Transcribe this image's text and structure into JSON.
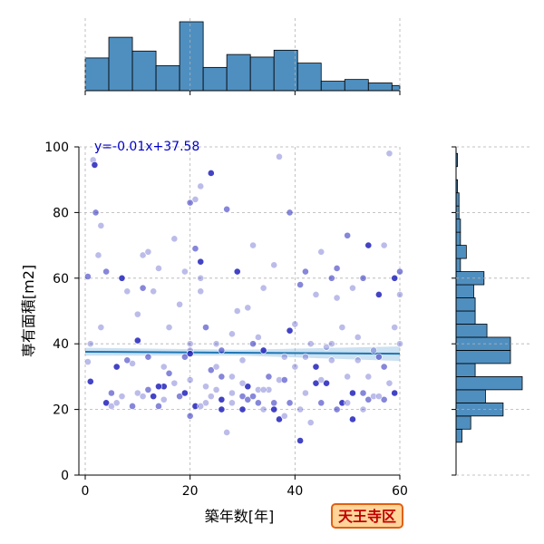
{
  "chart_data": {
    "type": "scatter",
    "xlabel": "築年数[年]",
    "ylabel": "専有面積[m2]",
    "xlim": [
      -1,
      60
    ],
    "ylim": [
      0,
      100
    ],
    "xticks": [
      0,
      20,
      40,
      60
    ],
    "yticks": [
      0,
      20,
      40,
      60,
      80,
      100
    ],
    "grid": true,
    "annotation": "y=-0.01x+37.58",
    "badge": "天王寺区",
    "regression": {
      "slope": -0.01,
      "intercept": 37.58,
      "x_range": [
        0,
        60
      ]
    },
    "marginal_x_hist": {
      "bin_edges": [
        0,
        4.5,
        9,
        13.5,
        18,
        22.5,
        27,
        31.5,
        36,
        40.5,
        45,
        49.5,
        54,
        58.5,
        60
      ],
      "counts": [
        38,
        62,
        46,
        29,
        80,
        27,
        42,
        39,
        47,
        32,
        11,
        13,
        9,
        6
      ]
    },
    "marginal_y_hist": {
      "bin_edges": [
        10,
        14,
        18,
        22,
        26,
        30,
        34,
        38,
        42,
        46,
        50,
        54,
        58,
        62,
        66,
        70,
        74,
        78,
        82,
        86,
        90,
        94,
        98
      ],
      "counts": [
        4,
        10,
        32,
        20,
        45,
        13,
        37,
        37,
        21,
        13,
        13,
        12,
        19,
        3,
        7,
        3,
        3,
        2,
        2,
        1,
        0,
        1,
        0
      ]
    },
    "points": [
      [
        1,
        28.5
      ],
      [
        0.5,
        34.5
      ],
      [
        1,
        40
      ],
      [
        0.5,
        60.5
      ],
      [
        1.5,
        96
      ],
      [
        1.8,
        94.5
      ],
      [
        2,
        80
      ],
      [
        3,
        76
      ],
      [
        2.5,
        67
      ],
      [
        4,
        62
      ],
      [
        4,
        22
      ],
      [
        5,
        21
      ],
      [
        5,
        25
      ],
      [
        6,
        22
      ],
      [
        7,
        24
      ],
      [
        7,
        60
      ],
      [
        8,
        56
      ],
      [
        9,
        34
      ],
      [
        9,
        21
      ],
      [
        10,
        25
      ],
      [
        10,
        41
      ],
      [
        11,
        57
      ],
      [
        11,
        67
      ],
      [
        12,
        68
      ],
      [
        12,
        36
      ],
      [
        13,
        24
      ],
      [
        13,
        56
      ],
      [
        14,
        21
      ],
      [
        14,
        63
      ],
      [
        15,
        23
      ],
      [
        15,
        27
      ],
      [
        16,
        45
      ],
      [
        17,
        72
      ],
      [
        18,
        24
      ],
      [
        18,
        52
      ],
      [
        19,
        25
      ],
      [
        19,
        36
      ],
      [
        20,
        38
      ],
      [
        20,
        40
      ],
      [
        20,
        83
      ],
      [
        20,
        37
      ],
      [
        20,
        29
      ],
      [
        21,
        69
      ],
      [
        21,
        84
      ],
      [
        22,
        60
      ],
      [
        22,
        65
      ],
      [
        22,
        56
      ],
      [
        22,
        88
      ],
      [
        23,
        45
      ],
      [
        23,
        22
      ],
      [
        24,
        92
      ],
      [
        24,
        32
      ],
      [
        25,
        33
      ],
      [
        25,
        26
      ],
      [
        26,
        30
      ],
      [
        26,
        20
      ],
      [
        27,
        13
      ],
      [
        27,
        81
      ],
      [
        28,
        43
      ],
      [
        28,
        25
      ],
      [
        29,
        62
      ],
      [
        29,
        50
      ],
      [
        30,
        35
      ],
      [
        30,
        24
      ],
      [
        31,
        51
      ],
      [
        31,
        27
      ],
      [
        32,
        40
      ],
      [
        32,
        70
      ],
      [
        33,
        42
      ],
      [
        33,
        22
      ],
      [
        34,
        38
      ],
      [
        34,
        57
      ],
      [
        35,
        30
      ],
      [
        35,
        26
      ],
      [
        36,
        64
      ],
      [
        36,
        20
      ],
      [
        37,
        97
      ],
      [
        37,
        29
      ],
      [
        38,
        29
      ],
      [
        38,
        36
      ],
      [
        39,
        44
      ],
      [
        39,
        80
      ],
      [
        40,
        33
      ],
      [
        40,
        46
      ],
      [
        41,
        58
      ],
      [
        41,
        10.5
      ],
      [
        42,
        36
      ],
      [
        42,
        62
      ],
      [
        43,
        40
      ],
      [
        43,
        16
      ],
      [
        44,
        33
      ],
      [
        44,
        55
      ],
      [
        45,
        68
      ],
      [
        45,
        22
      ],
      [
        46,
        39
      ],
      [
        46,
        28
      ],
      [
        47,
        60
      ],
      [
        47,
        40
      ],
      [
        48,
        54
      ],
      [
        48,
        63
      ],
      [
        49,
        22
      ],
      [
        49,
        45
      ],
      [
        50,
        73
      ],
      [
        50,
        30
      ],
      [
        51,
        57
      ],
      [
        51,
        25
      ],
      [
        52,
        42
      ],
      [
        52,
        35
      ],
      [
        53,
        60
      ],
      [
        53,
        20
      ],
      [
        54,
        70
      ],
      [
        54,
        23
      ],
      [
        55,
        24
      ],
      [
        55,
        38
      ],
      [
        56,
        36
      ],
      [
        56,
        55
      ],
      [
        57,
        70
      ],
      [
        57,
        23
      ],
      [
        58,
        98
      ],
      [
        58,
        28
      ],
      [
        59,
        60
      ],
      [
        59,
        45
      ],
      [
        60,
        55
      ],
      [
        60,
        62
      ],
      [
        3,
        45
      ],
      [
        6,
        33
      ],
      [
        8,
        35
      ],
      [
        10,
        49
      ],
      [
        11,
        24
      ],
      [
        12,
        26
      ],
      [
        14,
        27
      ],
      [
        15,
        33
      ],
      [
        16,
        31
      ],
      [
        17,
        28
      ],
      [
        19,
        62
      ],
      [
        21,
        21
      ],
      [
        23,
        27
      ],
      [
        25,
        40
      ],
      [
        26,
        38
      ],
      [
        28,
        30
      ],
      [
        30,
        20
      ],
      [
        31,
        23
      ],
      [
        33,
        26
      ],
      [
        34,
        20
      ],
      [
        36,
        22
      ],
      [
        37,
        17
      ],
      [
        38,
        18
      ],
      [
        39,
        22
      ],
      [
        41,
        20
      ],
      [
        42,
        25
      ],
      [
        44,
        28
      ],
      [
        45,
        29
      ],
      [
        47,
        35
      ],
      [
        48,
        20
      ],
      [
        50,
        22
      ],
      [
        51,
        17
      ],
      [
        53,
        25
      ],
      [
        54,
        30
      ],
      [
        56,
        24
      ],
      [
        57,
        33
      ],
      [
        59,
        25
      ],
      [
        60,
        40
      ],
      [
        20,
        18
      ],
      [
        22,
        21
      ],
      [
        24,
        24
      ],
      [
        26,
        23
      ],
      [
        28,
        22
      ],
      [
        30,
        28
      ],
      [
        32,
        24
      ],
      [
        34,
        26
      ]
    ]
  }
}
